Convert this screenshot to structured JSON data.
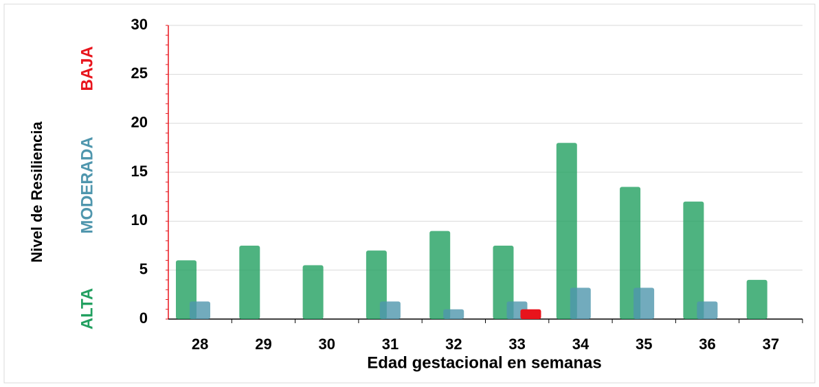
{
  "chart_data": {
    "type": "bar",
    "y_label": "Nivel de Resiliencia",
    "x_label": "Edad gestacional en semanas",
    "categories": [
      "28",
      "29",
      "30",
      "31",
      "32",
      "33",
      "34",
      "35",
      "36",
      "37"
    ],
    "series": [
      {
        "name": "ALTA",
        "color": "#22a060",
        "values": [
          6,
          7.5,
          5.5,
          7,
          9,
          7.5,
          18,
          13.5,
          12,
          4
        ]
      },
      {
        "name": "MODERADA",
        "color": "#4f96ad",
        "values": [
          1.8,
          0,
          0,
          1.8,
          1,
          1.8,
          3.2,
          3.2,
          1.8,
          0
        ]
      },
      {
        "name": "BAJA",
        "color": "#e8141c",
        "values": [
          0,
          0,
          0,
          0,
          0,
          1,
          0,
          0,
          0,
          0
        ]
      }
    ],
    "ylim": [
      0,
      30
    ],
    "yticks": [
      0,
      5,
      10,
      15,
      20,
      25,
      30
    ],
    "grid": true
  }
}
